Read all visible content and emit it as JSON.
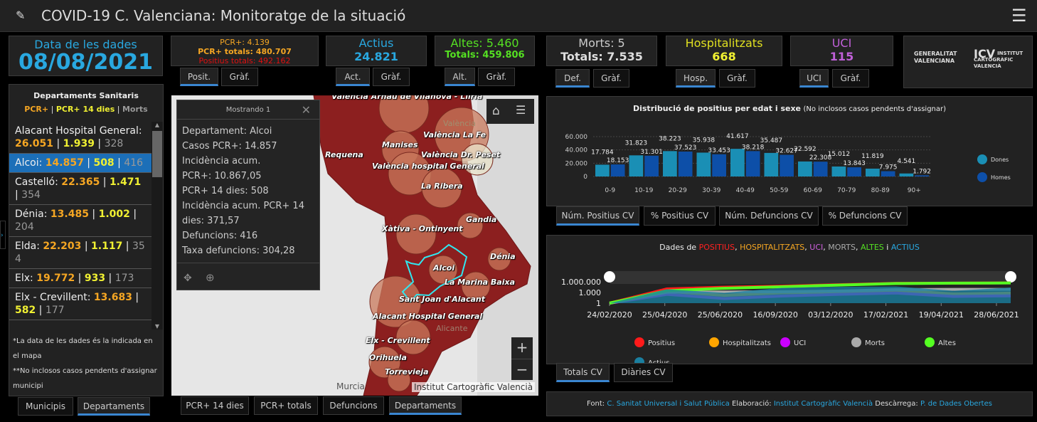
{
  "header": {
    "title": "COVID-19 C. Valenciana: Monitoratge de la situació",
    "menu_icon": "hamburger-icon"
  },
  "date_card": {
    "label": "Data de les dades",
    "value": "08/08/2021"
  },
  "positius": {
    "pcr": "PCR+: 4.139",
    "pcr_totals": "PCR+ totals: 480.707",
    "positius_totals": "Positius totals: 492.162",
    "tabs": [
      "Posit.",
      "Gràf."
    ]
  },
  "actius": {
    "label": "Actius",
    "value": "24.821",
    "tabs": [
      "Act.",
      "Gràf."
    ]
  },
  "altes": {
    "label": "Altes: 5.460",
    "totals": "Totals: 459.806",
    "tabs": [
      "Alt.",
      "Gràf."
    ]
  },
  "morts": {
    "label": "Morts: 5",
    "totals": "Totals: 7.535",
    "tabs": [
      "Def.",
      "Gràf."
    ]
  },
  "hosp": {
    "label": "Hospitalitzats",
    "value": "668",
    "tabs": [
      "Hosp.",
      "Gràf."
    ]
  },
  "uci": {
    "label": "UCI",
    "value": "115",
    "tabs": [
      "UCI",
      "Gràf."
    ]
  },
  "logos": {
    "gva": "GENERALITAT VALENCIANA",
    "icv": "INSTITUT CARTOGRÀFIC VALENCIÀ"
  },
  "departments": {
    "title": "Departaments Sanitaris",
    "legend": {
      "pcr": "PCR+",
      "pcr14": "PCR+ 14 dies",
      "morts": "Morts",
      "sep": " | "
    },
    "items": [
      {
        "name": "Alacant Hospital General",
        "pcr": "26.051",
        "pcr14": "1.939",
        "morts": "328"
      },
      {
        "name": "Alcoi",
        "pcr": "14.857",
        "pcr14": "508",
        "morts": "416",
        "selected": true
      },
      {
        "name": "Castelló",
        "pcr": "22.365",
        "pcr14": "1.471",
        "morts": "354"
      },
      {
        "name": "Dénia",
        "pcr": "13.485",
        "pcr14": "1.002",
        "morts": "204"
      },
      {
        "name": "Elda",
        "pcr": "22.203",
        "pcr14": "1.117",
        "morts": "354"
      },
      {
        "name": "Elx",
        "pcr": "19.772",
        "pcr14": "933",
        "morts": "173"
      },
      {
        "name": "Elx - Crevillent",
        "pcr": "13.683",
        "pcr14": "582",
        "morts": "177"
      }
    ],
    "note1": "*La data de les dades és la indicada en el mapa",
    "note2": "**No inclosos casos pendents d'assignar municipi",
    "tabs": [
      "Municipis",
      "Departaments"
    ]
  },
  "map": {
    "popup": {
      "title": "Mostrando 1",
      "lines": [
        "Departament: Alcoi",
        "Casos PCR+: 14.857",
        "Incidència acum.",
        "PCR+: 10.867,05",
        "PCR+ 14 dies: 508",
        "Incidència acum. PCR+ 14",
        "dies: 371,57",
        "Defuncions: 416",
        "Taxa defuncions: 304,28"
      ]
    },
    "labels": [
      "València Arnau de Vilanova - Llíria",
      "València La Fe",
      "Manises",
      "València Dr. Peset",
      "Requena",
      "València hospital General",
      "La Ribera",
      "Xàtiva - Ontinyent",
      "Gandia",
      "Dénia",
      "Alcoi",
      "La Marina Baixa",
      "Sant Joan d'Alacant",
      "Alacant Hospital General",
      "Elx - Crevillent",
      "Orihuela",
      "Torrevieja",
      "Murcia",
      "València",
      "Alicante"
    ],
    "attribution": "Institut Cartogràfic Valencià",
    "zoom_in": "+",
    "zoom_out": "−",
    "tabs": [
      "PCR+ 14 dies",
      "PCR+ totals",
      "Defuncions",
      "Departaments"
    ]
  },
  "bar_panel": {
    "title_bold": "Distribució de positius per edat i sexe",
    "title_note": "(No inclosos casos pendents d'assignar)",
    "tabs": [
      "Núm. Positius CV",
      "% Positius CV",
      "Núm. Defuncions CV",
      "% Defuncions CV"
    ]
  },
  "line_panel": {
    "title_parts": [
      "Dades de ",
      "POSITIUS",
      ", ",
      "HOSPITALITZATS",
      ", ",
      "UCI",
      ", ",
      "MORTS",
      ", ",
      "ALTES",
      " i ",
      "ACTIUS"
    ],
    "tabs": [
      "Totals CV",
      "Diàries CV"
    ]
  },
  "footer": {
    "font_label": "Font:",
    "font_link": "C. Sanitat Universal i Salut Pública",
    "elab_label": "Elaboració:",
    "elab_link": "Institut Cartogràfic Valencià",
    "desc_label": "Descàrrega:",
    "desc_link": "P. de Dades Obertes"
  },
  "chart_data": [
    {
      "type": "bar",
      "title": "Distribució de positius per edat i sexe (No inclosos casos pendents d'assignar)",
      "categories": [
        "0-9",
        "10-19",
        "20-29",
        "30-39",
        "40-49",
        "50-59",
        "60-69",
        "70-79",
        "80-89",
        "90+"
      ],
      "series": [
        {
          "name": "Dones",
          "color": "#1a8fb5",
          "values": [
            17784,
            31823,
            38223,
            35938,
            41617,
            35487,
            22592,
            15012,
            11819,
            4541
          ]
        },
        {
          "name": "Homes",
          "color": "#0d4fa8",
          "values": [
            18153,
            31301,
            37523,
            33453,
            38218,
            32627,
            22308,
            13843,
            7975,
            1792
          ]
        }
      ],
      "labels": [
        "17.784",
        "31.823",
        "38.223",
        "35.938",
        "41.617",
        "35.487",
        "22.592",
        "15.012",
        "11.819",
        "4.541",
        "18.153",
        "31.301",
        "37.523",
        "33.453",
        "38.218",
        "32.627",
        "22.308",
        "13.843",
        "7.975",
        "1.792"
      ],
      "yticks": [
        "0",
        "20.000",
        "40.000",
        "60.000"
      ],
      "ylim": [
        0,
        60000
      ],
      "grid": true,
      "legend": "right"
    },
    {
      "type": "line",
      "title": "Dades de POSITIUS, HOSPITALITZATS, UCI, MORTS, ALTES i ACTIUS",
      "yscale": "log",
      "yticks": [
        "1",
        "1.000",
        "1.000.000"
      ],
      "xticks": [
        "24/02/2020",
        "25/04/2020",
        "25/06/2020",
        "16/09/2020",
        "03/12/2020",
        "17/02/2021",
        "19/04/2021",
        "28/06/2021"
      ],
      "legend": "bottom",
      "series": [
        {
          "name": "Positius",
          "color": "#ff1a1a",
          "values": [
            1,
            10000,
            30000,
            60000,
            150000,
            380000,
            420000,
            492162
          ]
        },
        {
          "name": "Hospitalitzats",
          "color": "#ffa500",
          "values": [
            1,
            2000,
            150,
            800,
            1500,
            4000,
            400,
            668
          ]
        },
        {
          "name": "UCI",
          "color": "#cc00ff",
          "values": [
            1,
            300,
            20,
            100,
            300,
            700,
            80,
            115
          ]
        },
        {
          "name": "Morts",
          "color": "#aaaaaa",
          "values": [
            1,
            1200,
            1400,
            1700,
            2500,
            6500,
            7400,
            7535
          ]
        },
        {
          "name": "Altes",
          "color": "#55ff22",
          "values": [
            1,
            3000,
            15000,
            40000,
            120000,
            330000,
            410000,
            459806
          ]
        },
        {
          "name": "Actius",
          "color": "#1a7fa0",
          "values": [
            1,
            8000,
            800,
            20000,
            40000,
            50000,
            3000,
            24821
          ]
        }
      ]
    }
  ]
}
